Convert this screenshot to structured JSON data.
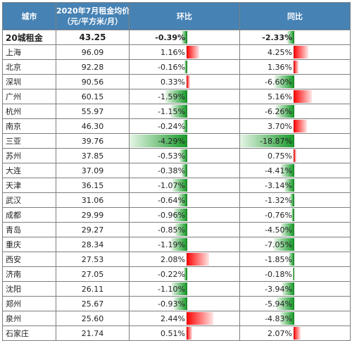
{
  "header": {
    "city": "城市",
    "rent_line1": "2020年7月租金均价",
    "rent_line2": "（元/平方米/月）",
    "mom": "环比",
    "yoy": "同比"
  },
  "rows": [
    {
      "city": "20城租金",
      "rent": "43.25",
      "mom": "-0.39%",
      "yoy": "-2.33%",
      "mom_v": -0.39,
      "yoy_v": -2.33
    },
    {
      "city": "上海",
      "rent": "96.09",
      "mom": "1.16%",
      "yoy": "4.25%",
      "mom_v": 1.16,
      "yoy_v": 4.25
    },
    {
      "city": "北京",
      "rent": "92.28",
      "mom": "-0.16%",
      "yoy": "1.36%",
      "mom_v": -0.16,
      "yoy_v": 1.36
    },
    {
      "city": "深圳",
      "rent": "90.56",
      "mom": "0.33%",
      "yoy": "-6.60%",
      "mom_v": 0.33,
      "yoy_v": -6.6
    },
    {
      "city": "广州",
      "rent": "60.15",
      "mom": "-1.59%",
      "yoy": "5.16%",
      "mom_v": -1.59,
      "yoy_v": 5.16
    },
    {
      "city": "杭州",
      "rent": "55.97",
      "mom": "-1.15%",
      "yoy": "-6.26%",
      "mom_v": -1.15,
      "yoy_v": -6.26
    },
    {
      "city": "南京",
      "rent": "46.30",
      "mom": "-0.24%",
      "yoy": "3.70%",
      "mom_v": -0.24,
      "yoy_v": 3.7
    },
    {
      "city": "三亚",
      "rent": "39.76",
      "mom": "-4.29%",
      "yoy": "-18.87%",
      "mom_v": -4.29,
      "yoy_v": -18.87
    },
    {
      "city": "苏州",
      "rent": "37.85",
      "mom": "-0.53%",
      "yoy": "0.75%",
      "mom_v": -0.53,
      "yoy_v": 0.75
    },
    {
      "city": "大连",
      "rent": "37.09",
      "mom": "-0.38%",
      "yoy": "-4.41%",
      "mom_v": -0.38,
      "yoy_v": -4.41
    },
    {
      "city": "天津",
      "rent": "36.15",
      "mom": "-1.07%",
      "yoy": "-3.14%",
      "mom_v": -1.07,
      "yoy_v": -3.14
    },
    {
      "city": "武汉",
      "rent": "31.06",
      "mom": "-0.64%",
      "yoy": "-1.32%",
      "mom_v": -0.64,
      "yoy_v": -1.32
    },
    {
      "city": "成都",
      "rent": "29.99",
      "mom": "-0.96%",
      "yoy": "-0.76%",
      "mom_v": -0.96,
      "yoy_v": -0.76
    },
    {
      "city": "青岛",
      "rent": "29.27",
      "mom": "-0.85%",
      "yoy": "-4.50%",
      "mom_v": -0.85,
      "yoy_v": -4.5
    },
    {
      "city": "重庆",
      "rent": "28.34",
      "mom": "-1.19%",
      "yoy": "-7.05%",
      "mom_v": -1.19,
      "yoy_v": -7.05
    },
    {
      "city": "西安",
      "rent": "27.53",
      "mom": "2.08%",
      "yoy": "-1.85%",
      "mom_v": 2.08,
      "yoy_v": -1.85
    },
    {
      "city": "济南",
      "rent": "27.05",
      "mom": "-0.22%",
      "yoy": "-0.18%",
      "mom_v": -0.22,
      "yoy_v": -0.18
    },
    {
      "city": "沈阳",
      "rent": "26.11",
      "mom": "-1.10%",
      "yoy": "-3.94%",
      "mom_v": -1.1,
      "yoy_v": -3.94
    },
    {
      "city": "郑州",
      "rent": "25.67",
      "mom": "-0.93%",
      "yoy": "-5.94%",
      "mom_v": -0.93,
      "yoy_v": -5.94
    },
    {
      "city": "泉州",
      "rent": "25.60",
      "mom": "2.44%",
      "yoy": "-4.83%",
      "mom_v": 2.44,
      "yoy_v": -4.83
    },
    {
      "city": "石家庄",
      "rent": "21.74",
      "mom": "0.51%",
      "yoy": "2.07%",
      "mom_v": 0.51,
      "yoy_v": 2.07
    }
  ],
  "colors": {
    "header_bg": "#4682b4",
    "positive": "#ff0000",
    "negative": "#1a9b2b"
  }
}
